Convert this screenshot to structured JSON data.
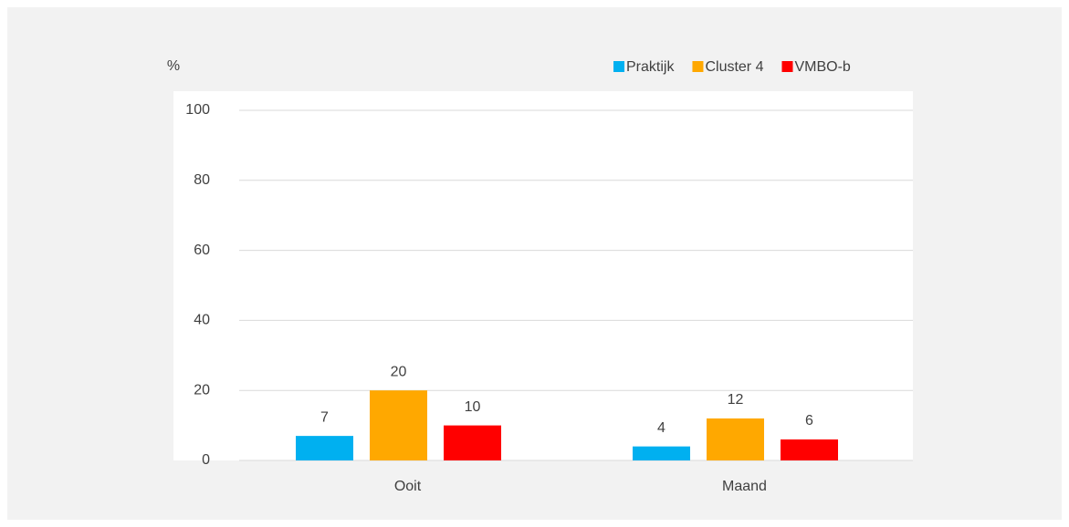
{
  "chart_data": {
    "type": "bar",
    "y_label": "%",
    "categories": [
      "Ooit",
      "Maand"
    ],
    "series": [
      {
        "name": "Praktijk",
        "color": "#00b0f0",
        "values": [
          7,
          4
        ]
      },
      {
        "name": "Cluster 4",
        "color": "#ffa800",
        "values": [
          20,
          12
        ]
      },
      {
        "name": "VMBO-b",
        "color": "#ff0000",
        "values": [
          10,
          6
        ]
      }
    ],
    "ylim": [
      0,
      100
    ],
    "yticks": [
      0,
      20,
      40,
      60,
      80,
      100
    ],
    "grid": true,
    "legend": "top-right"
  }
}
